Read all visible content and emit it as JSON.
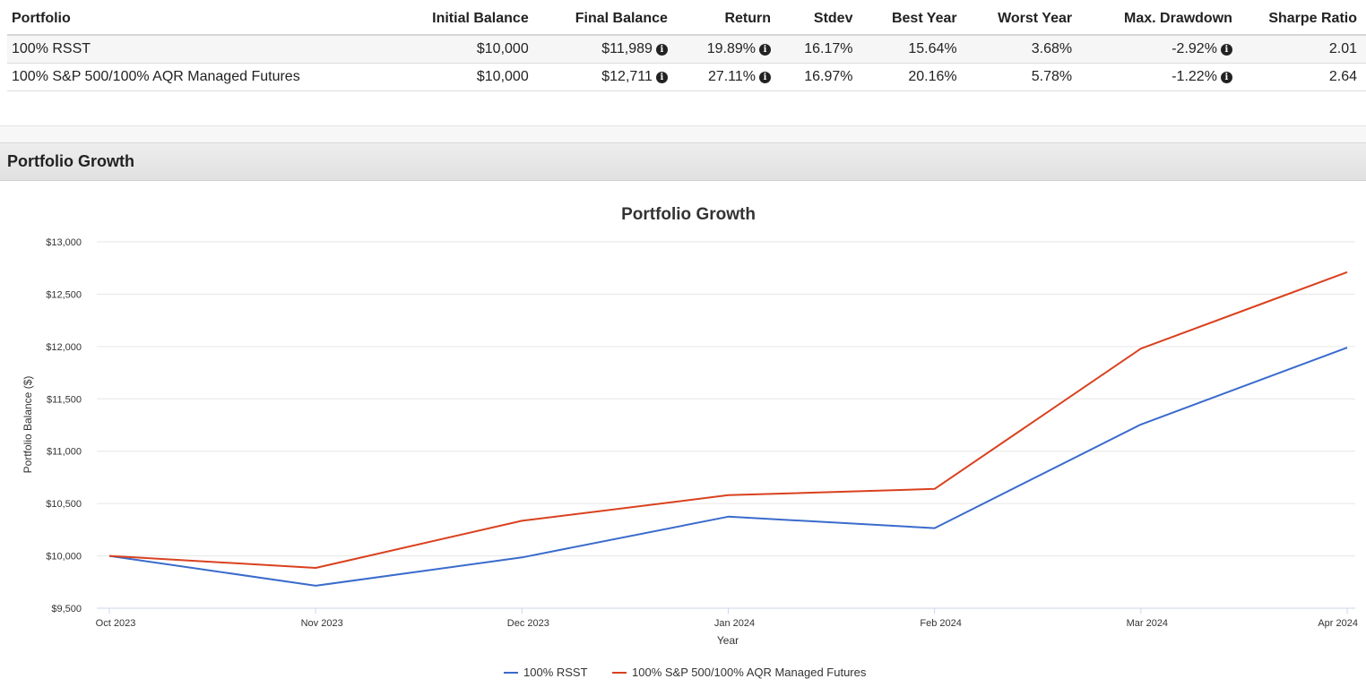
{
  "summary": {
    "headers": [
      "Portfolio",
      "Initial Balance",
      "Final Balance",
      "Return",
      "Stdev",
      "Best Year",
      "Worst Year",
      "Max. Drawdown",
      "Sharpe Ratio"
    ],
    "rows": [
      {
        "portfolio": "100% RSST",
        "initial_balance": "$10,000",
        "final_balance": "$11,989",
        "return": "19.89%",
        "stdev": "16.17%",
        "best_year": "15.64%",
        "worst_year": "3.68%",
        "max_drawdown": "-2.92%",
        "sharpe_ratio": "2.01"
      },
      {
        "portfolio": "100% S&P 500/100% AQR Managed Futures",
        "initial_balance": "$10,000",
        "final_balance": "$12,711",
        "return": "27.11%",
        "stdev": "16.97%",
        "best_year": "20.16%",
        "worst_year": "5.78%",
        "max_drawdown": "-1.22%",
        "sharpe_ratio": "2.64"
      }
    ],
    "info_icon_glyph": "i",
    "info_icon_name": "info-circle-icon"
  },
  "section": {
    "title": "Portfolio Growth"
  },
  "chart_data": {
    "type": "line",
    "title": "Portfolio Growth",
    "xlabel": "Year",
    "ylabel": "Portfolio Balance ($)",
    "categories": [
      "Oct 2023",
      "Nov 2023",
      "Dec 2023",
      "Jan 2024",
      "Feb 2024",
      "Mar 2024",
      "Apr 2024"
    ],
    "y_ticks": [
      "$9,500",
      "$10,000",
      "$10,500",
      "$11,000",
      "$11,500",
      "$12,000",
      "$12,500",
      "$13,000"
    ],
    "ylim": [
      9500,
      13000
    ],
    "grid": true,
    "legend_position": "bottom-center",
    "series": [
      {
        "name": "100% RSST",
        "color": "#3a6bcc",
        "values": [
          10000,
          9715,
          9985,
          10375,
          10265,
          11255,
          11989
        ]
      },
      {
        "name": "100% S&P 500/100% AQR Managed Futures",
        "color": "#d9411e",
        "values": [
          10000,
          9885,
          10335,
          10580,
          10640,
          11980,
          12711
        ]
      }
    ]
  }
}
